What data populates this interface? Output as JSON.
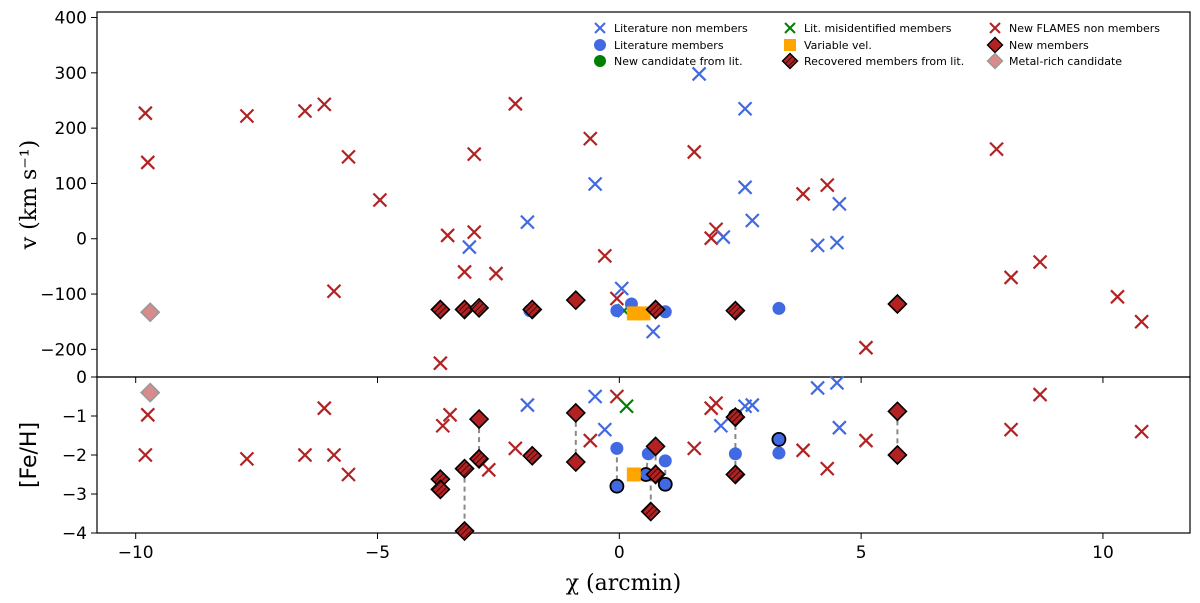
{
  "chart_data": {
    "type": "scatter",
    "panels": [
      {
        "name": "velocity",
        "ylabel": "v (km s⁻¹)",
        "ylim": [
          -250,
          410
        ],
        "yticks": [
          -200,
          -100,
          0,
          100,
          200,
          300,
          400
        ],
        "ytick_labels": [
          "−200",
          "−100",
          "0",
          "100",
          "200",
          "300",
          "400"
        ]
      },
      {
        "name": "metallicity",
        "ylabel": "[Fe/H]",
        "ylim": [
          -4,
          0
        ],
        "yticks": [
          -4,
          -3,
          -2,
          -1,
          0
        ],
        "ytick_labels": [
          "−4",
          "−3",
          "−2",
          "−1",
          "0"
        ]
      }
    ],
    "xlabel": "χ (arcmin)",
    "xlim": [
      -10.8,
      11.8
    ],
    "xticks": [
      -10,
      -5,
      0,
      5,
      10
    ],
    "xtick_labels": [
      "−10",
      "−5",
      "0",
      "5",
      "10"
    ],
    "colors": {
      "lit_nonmember": "#4169e1",
      "lit_member": "#4169e1",
      "new_candidate": "#008000",
      "lit_misidentified": "#008000",
      "variable": "#ffa500",
      "recovered": "#b22222",
      "flames_nonmember": "#b22222",
      "new_member": "#b22222",
      "metal_rich": "#d98a8a"
    },
    "legend": {
      "placement": "upper-right",
      "entries": [
        {
          "key": "lit_nonmember",
          "label": "Literature non members",
          "marker": "x"
        },
        {
          "key": "lit_member",
          "label": "Literature members",
          "marker": "circle"
        },
        {
          "key": "new_candidate",
          "label": "New candidate from lit.",
          "marker": "circle"
        },
        {
          "key": "lit_misidentified",
          "label": "Lit. misidentified members",
          "marker": "x"
        },
        {
          "key": "variable",
          "label": "Variable vel.",
          "marker": "square"
        },
        {
          "key": "recovered",
          "label": "Recovered members from lit.",
          "marker": "hatched-diamond"
        },
        {
          "key": "flames_nonmember",
          "label": "New FLAMES non members",
          "marker": "x"
        },
        {
          "key": "new_member",
          "label": "New members",
          "marker": "diamond"
        },
        {
          "key": "metal_rich",
          "label": "Metal-rich candidate",
          "marker": "diamond"
        }
      ]
    },
    "series": [
      {
        "key": "flames_nonmember",
        "velocity": [
          [
            -9.8,
            227
          ],
          [
            -9.75,
            138
          ],
          [
            -7.7,
            222
          ],
          [
            -6.5,
            231
          ],
          [
            -6.1,
            243
          ],
          [
            -5.9,
            -95
          ],
          [
            -5.6,
            148
          ],
          [
            -4.95,
            70
          ],
          [
            -3.55,
            6
          ],
          [
            -3.2,
            -60
          ],
          [
            -3.7,
            -225
          ],
          [
            -3.0,
            153
          ],
          [
            -3.0,
            12
          ],
          [
            -2.55,
            -63
          ],
          [
            -2.15,
            244
          ],
          [
            -0.6,
            181
          ],
          [
            -0.3,
            -31
          ],
          [
            -0.05,
            -108
          ],
          [
            1.55,
            157
          ],
          [
            1.9,
            1
          ],
          [
            2.0,
            17
          ],
          [
            3.8,
            81
          ],
          [
            4.3,
            97
          ],
          [
            5.1,
            -197
          ],
          [
            7.8,
            162
          ],
          [
            8.1,
            -70
          ],
          [
            8.7,
            -42
          ],
          [
            10.3,
            -105
          ],
          [
            10.8,
            -150
          ]
        ],
        "feh": [
          [
            -9.8,
            -2.0
          ],
          [
            -9.75,
            -0.97
          ],
          [
            -7.7,
            -2.1
          ],
          [
            -6.5,
            -2.0
          ],
          [
            -6.1,
            -0.8
          ],
          [
            -5.9,
            -2.0
          ],
          [
            -5.6,
            -2.5
          ],
          [
            -3.65,
            -1.25
          ],
          [
            -3.5,
            -0.97
          ],
          [
            -2.7,
            -2.38
          ],
          [
            -2.15,
            -1.83
          ],
          [
            -0.6,
            -1.63
          ],
          [
            -0.05,
            -0.5
          ],
          [
            1.55,
            -1.83
          ],
          [
            1.9,
            -0.8
          ],
          [
            2.0,
            -0.67
          ],
          [
            3.8,
            -1.88
          ],
          [
            4.3,
            -2.35
          ],
          [
            5.1,
            -1.63
          ],
          [
            8.1,
            -1.35
          ],
          [
            8.7,
            -0.45
          ],
          [
            10.8,
            -1.4
          ]
        ]
      },
      {
        "key": "lit_nonmember",
        "velocity": [
          [
            -3.1,
            -15
          ],
          [
            -1.9,
            30
          ],
          [
            -0.5,
            99
          ],
          [
            0.05,
            -90
          ],
          [
            0.7,
            -168
          ],
          [
            1.65,
            298
          ],
          [
            2.15,
            3
          ],
          [
            2.6,
            235
          ],
          [
            2.6,
            93
          ],
          [
            2.75,
            33
          ],
          [
            4.1,
            -12
          ],
          [
            4.5,
            -7
          ],
          [
            4.55,
            63
          ]
        ],
        "feh": [
          [
            -1.9,
            -0.72
          ],
          [
            -0.5,
            -0.5
          ],
          [
            -0.3,
            -1.35
          ],
          [
            2.1,
            -1.25
          ],
          [
            2.6,
            -0.75
          ],
          [
            2.75,
            -0.72
          ],
          [
            4.1,
            -0.28
          ],
          [
            4.5,
            -0.15
          ],
          [
            4.55,
            -1.3
          ]
        ]
      },
      {
        "key": "lit_misidentified",
        "velocity": [
          [
            0.1,
            -130
          ]
        ],
        "feh": [
          [
            0.15,
            -0.75
          ]
        ]
      },
      {
        "key": "lit_member",
        "velocity": [
          [
            -1.85,
            -130
          ],
          [
            -0.05,
            -130
          ],
          [
            0.25,
            -118
          ],
          [
            0.95,
            -132
          ],
          [
            3.3,
            -126
          ]
        ],
        "feh": [
          [
            -0.05,
            -1.83
          ],
          [
            0.6,
            -1.97
          ],
          [
            0.95,
            -2.15
          ],
          [
            2.4,
            -1.97
          ],
          [
            3.3,
            -1.95
          ]
        ]
      },
      {
        "key": "lit_member_outlined",
        "velocity": [],
        "feh": [
          [
            -0.05,
            -2.8
          ],
          [
            0.55,
            -2.5
          ],
          [
            0.95,
            -2.75
          ],
          [
            2.4,
            -1.0
          ],
          [
            3.3,
            -1.6
          ]
        ]
      },
      {
        "key": "variable",
        "velocity": [
          [
            0.3,
            -135
          ],
          [
            0.5,
            -135
          ]
        ],
        "feh": [
          [
            0.3,
            -2.5
          ]
        ]
      },
      {
        "key": "recovered",
        "velocity": [
          [
            -3.7,
            -128
          ],
          [
            -3.2,
            -128
          ],
          [
            -2.9,
            -125
          ],
          [
            -1.8,
            -128
          ],
          [
            0.75,
            -128
          ],
          [
            2.4,
            -130
          ]
        ],
        "feh": [
          [
            -3.7,
            -2.62
          ],
          [
            -3.7,
            -2.88
          ],
          [
            -3.2,
            -2.35
          ],
          [
            -3.2,
            -3.95
          ],
          [
            -2.9,
            -2.1
          ],
          [
            -1.8,
            -2.02
          ],
          [
            0.65,
            -3.45
          ],
          [
            0.75,
            -2.5
          ],
          [
            2.4,
            -2.5
          ],
          [
            2.4,
            -1.03
          ]
        ]
      },
      {
        "key": "new_member",
        "velocity": [
          [
            -0.9,
            -111
          ],
          [
            5.75,
            -118
          ]
        ],
        "feh": [
          [
            -2.9,
            -1.08
          ],
          [
            -0.9,
            -0.92
          ],
          [
            -0.9,
            -2.18
          ],
          [
            0.75,
            -1.78
          ],
          [
            5.75,
            -0.88
          ],
          [
            5.75,
            -2.0
          ]
        ]
      },
      {
        "key": "metal_rich",
        "velocity": [
          [
            -9.7,
            -133
          ]
        ],
        "feh": [
          [
            -9.7,
            -0.4
          ]
        ]
      }
    ],
    "connectors_feh": [
      [
        -3.7,
        -2.62,
        -3.7,
        -2.88
      ],
      [
        -3.2,
        -2.35,
        -3.2,
        -3.95
      ],
      [
        -2.9,
        -1.08,
        -2.9,
        -2.1
      ],
      [
        -0.9,
        -0.92,
        -0.9,
        -2.18
      ],
      [
        -0.05,
        -1.83,
        -0.05,
        -2.8
      ],
      [
        0.6,
        -1.97,
        0.55,
        -2.5
      ],
      [
        0.65,
        -2.55,
        0.65,
        -3.45
      ],
      [
        0.75,
        -1.78,
        0.75,
        -2.5
      ],
      [
        0.95,
        -2.15,
        0.95,
        -2.75
      ],
      [
        2.4,
        -1.0,
        2.4,
        -2.5
      ],
      [
        3.3,
        -1.6,
        3.3,
        -1.95
      ],
      [
        5.75,
        -0.88,
        5.75,
        -2.0
      ]
    ]
  }
}
